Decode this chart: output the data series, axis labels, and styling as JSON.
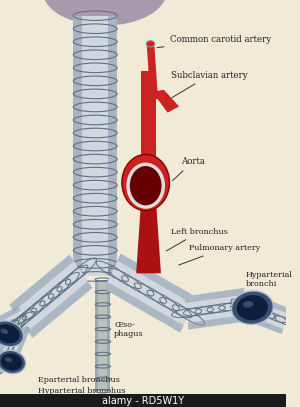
{
  "bg_color": "#f0ead6",
  "labels": {
    "common_carotid": "Common carotid artery",
    "subclavian": "Subclavian artery",
    "aorta": "Aorta",
    "left_bronchus": "Left bronchus",
    "pulmonary": "Pulmonary artery",
    "hyparterial": "Hyparterial\nbronchi",
    "oesophagus": "Œso-\nphagus",
    "eparterial": "Eparterial bronchus",
    "hyparterial2": "Hyparterial bronchus"
  },
  "colors": {
    "trachea_fill": "#d0d8de",
    "trachea_shade": "#8898aa",
    "trachea_ring": "#607080",
    "aorta_red": "#cc2222",
    "aorta_dark": "#aa1111",
    "aorta_interior": "#660000",
    "bronchus_outer": "#3a4f70",
    "bronchus_dark": "#0d1f3c",
    "bronchus_hi": "#5577aa",
    "thyroid_purple": "#9080a0",
    "esophagus": "#b0b8b0",
    "label_color": "#222222"
  },
  "watermark": "alamy - RD5W1Y",
  "figsize": [
    3.0,
    4.07
  ],
  "dpi": 100
}
